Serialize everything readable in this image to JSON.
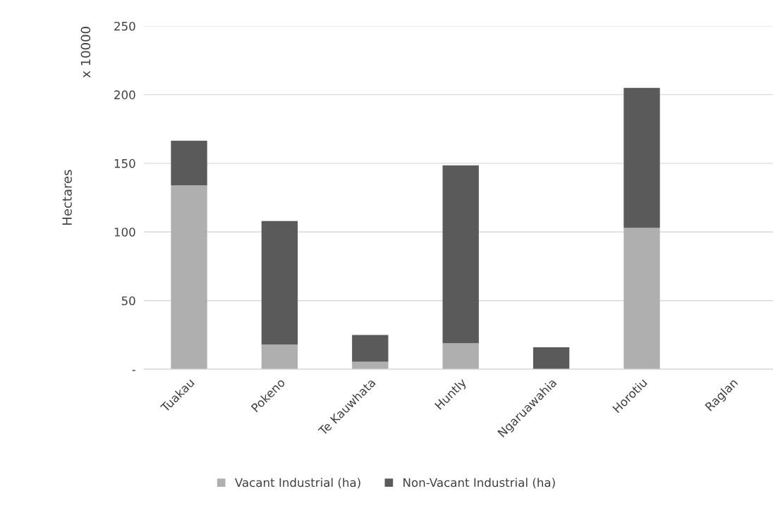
{
  "chart_data": {
    "type": "bar",
    "stacked": true,
    "ylabel": "Hectares",
    "annotations": [
      "x 10000"
    ],
    "categories": [
      "Tuakau",
      "Pokeno",
      "Te Kauwhata",
      "Huntly",
      "Ngaruawahia",
      "Horotiu",
      "Raglan"
    ],
    "series": [
      {
        "name": "Vacant Industrial (ha)",
        "color": "#afafaf",
        "values": [
          134,
          18,
          5.5,
          19,
          0,
          103,
          0
        ]
      },
      {
        "name": "Non-Vacant Industrial (ha)",
        "color": "#5a5a5a",
        "values": [
          32.5,
          90,
          19.5,
          129.5,
          16,
          102,
          0
        ]
      }
    ],
    "ylim": [
      0,
      250
    ],
    "yticks": [
      {
        "value": 0,
        "label": "-"
      },
      50,
      100,
      150,
      200,
      250
    ],
    "grid": "y",
    "legend": "bottom"
  }
}
